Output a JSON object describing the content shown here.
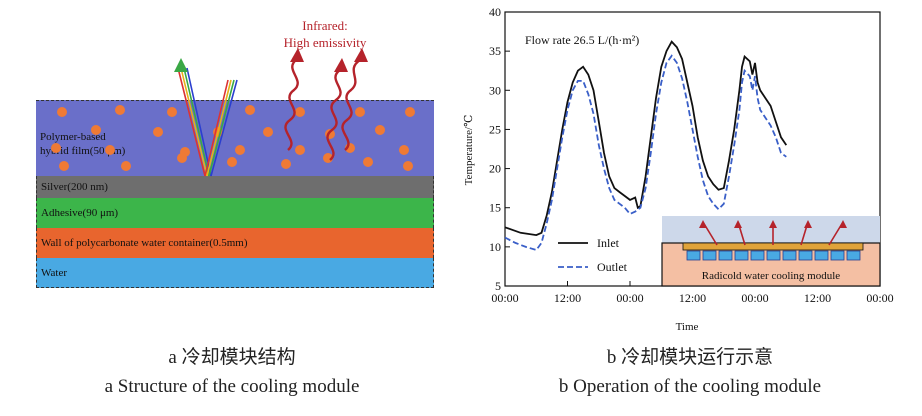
{
  "left_panel": {
    "layers": [
      {
        "label": "Polymer-based",
        "label2": "hybrid film(50 μm)",
        "color": "#6a6fc9"
      },
      {
        "label": "Silver(200 nm)",
        "color": "#6e6e6e"
      },
      {
        "label": "Adhesive(90 μm)",
        "color": "#3cb54a"
      },
      {
        "label": "Wall of polycarbonate water container(0.5mm)",
        "color": "#e8652e"
      },
      {
        "label": "Water",
        "color": "#49a9e3"
      }
    ],
    "infrared_label": "Infrared:",
    "emissivity_label": "High emissivity",
    "particle_color": "#ef7a35",
    "wave_color": "#b5232b"
  },
  "captions": {
    "a_cn": "a 冷却模块结构",
    "a_en": "a  Structure of the cooling module",
    "b_cn": "b 冷却模块运行示意",
    "b_en": "b  Operation of the cooling module"
  },
  "chart_data": {
    "type": "line",
    "annotation": "Flow rate 26.5 L/(h·m²)",
    "xlabel": "Time",
    "ylabel": "Temperature/℃",
    "ylim": [
      5,
      40
    ],
    "yticks": [
      5,
      10,
      15,
      20,
      25,
      30,
      35,
      40
    ],
    "xlim": [
      0,
      72
    ],
    "xticks": [
      0,
      12,
      24,
      36,
      48,
      60,
      72
    ],
    "xtick_labels": [
      "00:00",
      "12:00",
      "00:00",
      "12:00",
      "00:00",
      "12:00",
      "00:00"
    ],
    "legend_placement": "bottom-left",
    "series": [
      {
        "name": "Inlet",
        "color": "#111111",
        "style": "solid",
        "points": [
          [
            0,
            12.5
          ],
          [
            3,
            11.8
          ],
          [
            6,
            11.5
          ],
          [
            7,
            11.8
          ],
          [
            8,
            14
          ],
          [
            9,
            17
          ],
          [
            10,
            21
          ],
          [
            11,
            25
          ],
          [
            12,
            28.5
          ],
          [
            13,
            31
          ],
          [
            14,
            32.5
          ],
          [
            15,
            33
          ],
          [
            16,
            32
          ],
          [
            17,
            30
          ],
          [
            18,
            26
          ],
          [
            19,
            22
          ],
          [
            20,
            19
          ],
          [
            21,
            17.5
          ],
          [
            22,
            17
          ],
          [
            23,
            16.5
          ],
          [
            24,
            16
          ],
          [
            25,
            16.3
          ],
          [
            25.5,
            15
          ],
          [
            26,
            15.2
          ],
          [
            27,
            19
          ],
          [
            28,
            24
          ],
          [
            29,
            29
          ],
          [
            30,
            33
          ],
          [
            31,
            35
          ],
          [
            32,
            36.2
          ],
          [
            33,
            35.5
          ],
          [
            34,
            34
          ],
          [
            35,
            31
          ],
          [
            36,
            28
          ],
          [
            37,
            24
          ],
          [
            38,
            21
          ],
          [
            39,
            19
          ],
          [
            40,
            18
          ],
          [
            41,
            17.3
          ],
          [
            42,
            17.5
          ],
          [
            43,
            21
          ],
          [
            44,
            25
          ],
          [
            45,
            30
          ],
          [
            45.5,
            33
          ],
          [
            46,
            34.3
          ],
          [
            47,
            33.7
          ],
          [
            47.5,
            32
          ],
          [
            48,
            33.5
          ],
          [
            48.5,
            31
          ],
          [
            49,
            30
          ],
          [
            50,
            29
          ],
          [
            51,
            28
          ],
          [
            52,
            26
          ],
          [
            53,
            24
          ],
          [
            54,
            23
          ]
        ]
      },
      {
        "name": "Outlet",
        "color": "#3a5fc8",
        "style": "dashed",
        "points": [
          [
            0,
            11.2
          ],
          [
            2,
            10.5
          ],
          [
            4,
            10
          ],
          [
            6,
            9.6
          ],
          [
            7,
            10.5
          ],
          [
            8,
            13
          ],
          [
            9,
            16
          ],
          [
            10,
            20
          ],
          [
            11,
            24
          ],
          [
            12,
            27.5
          ],
          [
            13,
            30
          ],
          [
            14,
            31.2
          ],
          [
            15,
            31.2
          ],
          [
            16,
            29.5
          ],
          [
            17,
            27
          ],
          [
            18,
            23
          ],
          [
            19,
            20
          ],
          [
            20,
            17.5
          ],
          [
            21,
            16
          ],
          [
            22,
            15.5
          ],
          [
            23,
            15
          ],
          [
            24,
            14.2
          ],
          [
            25,
            14.5
          ],
          [
            26,
            15
          ],
          [
            27,
            17.5
          ],
          [
            28,
            22
          ],
          [
            29,
            27
          ],
          [
            30,
            31
          ],
          [
            31,
            33.5
          ],
          [
            32,
            34.4
          ],
          [
            33,
            33.5
          ],
          [
            34,
            31.5
          ],
          [
            35,
            28.5
          ],
          [
            36,
            25
          ],
          [
            37,
            21.5
          ],
          [
            38,
            18.5
          ],
          [
            39,
            16.5
          ],
          [
            40,
            15.5
          ],
          [
            41,
            14.8
          ],
          [
            42,
            15.5
          ],
          [
            43,
            19
          ],
          [
            44,
            23
          ],
          [
            45,
            27.5
          ],
          [
            45.5,
            31
          ],
          [
            46,
            32.5
          ],
          [
            47,
            31.8
          ],
          [
            47.5,
            30
          ],
          [
            48,
            31.8
          ],
          [
            48.5,
            29
          ],
          [
            49,
            27.5
          ],
          [
            50,
            26.5
          ],
          [
            51,
            25.5
          ],
          [
            52,
            24
          ],
          [
            53,
            22
          ],
          [
            54,
            21.5
          ]
        ]
      }
    ],
    "inset_label": "Radicold water cooling module"
  }
}
